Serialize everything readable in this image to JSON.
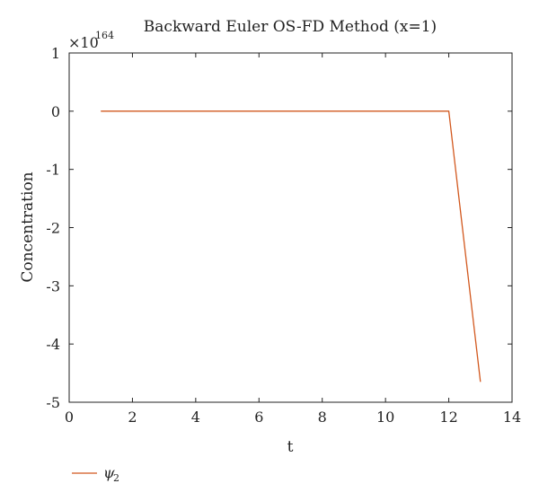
{
  "chart_data": {
    "type": "line",
    "title": "Backward Euler OS-FD Method (x=1)",
    "xlabel": "t",
    "ylabel": "Concentration",
    "y_multiplier": {
      "base": "×10",
      "exponent": "164"
    },
    "xlim": [
      0,
      14
    ],
    "ylim": [
      -5,
      1
    ],
    "xticks": [
      0,
      2,
      4,
      6,
      8,
      10,
      12,
      14
    ],
    "yticks": [
      1,
      0,
      -1,
      -2,
      -3,
      -4,
      -5
    ],
    "xtick_labels": [
      "0",
      "2",
      "4",
      "6",
      "8",
      "10",
      "12",
      "14"
    ],
    "ytick_labels": [
      "1",
      "0",
      "-1",
      "-2",
      "-3",
      "-4",
      "-5"
    ],
    "grid": false,
    "legend_position": "bottom-left",
    "series": [
      {
        "name": "ψ",
        "name_subscript": "2",
        "color": "#d2581e",
        "x": [
          1,
          2,
          3,
          4,
          5,
          6,
          7,
          8,
          9,
          10,
          11,
          12,
          13
        ],
        "y": [
          0,
          0,
          0,
          0,
          0,
          0,
          0,
          0,
          0,
          0,
          0,
          0,
          -4.65
        ]
      }
    ]
  }
}
